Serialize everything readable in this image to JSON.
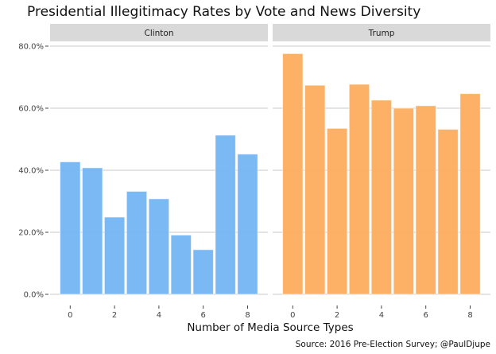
{
  "chart_data": {
    "type": "bar",
    "title": "Presidential Illegitimacy Rates by Vote and News Diversity",
    "xlabel": "Number of Media Source Types",
    "ylabel": "",
    "caption": "Source: 2016 Pre-Election Survey; @PaulDjupe",
    "x": [
      0,
      1,
      2,
      3,
      4,
      5,
      6,
      7,
      8
    ],
    "x_ticks": [
      "0",
      "2",
      "4",
      "6",
      "8"
    ],
    "x_tick_values": [
      0,
      2,
      4,
      6,
      8
    ],
    "y_ticks": [
      "0.0%",
      "20.0%",
      "40.0%",
      "60.0%",
      "80.0%"
    ],
    "y_tick_values": [
      0,
      20,
      40,
      60,
      80
    ],
    "ylim": [
      0,
      80.5
    ],
    "grid": true,
    "legend": "none",
    "facets": [
      {
        "name": "Clinton",
        "color": "#74b5f4",
        "values": [
          42.7,
          40.8,
          24.9,
          33.2,
          30.8,
          19.1,
          14.4,
          51.3,
          45.2
        ]
      },
      {
        "name": "Trump",
        "color": "#fdad5e",
        "values": [
          77.6,
          67.4,
          53.5,
          67.7,
          62.6,
          60.0,
          60.8,
          53.2,
          64.7
        ]
      }
    ]
  }
}
